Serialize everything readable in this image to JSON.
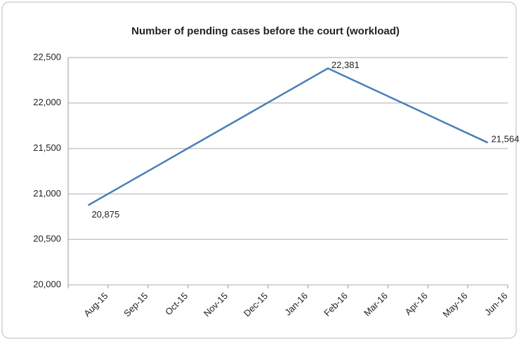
{
  "chart_data": {
    "type": "line",
    "title": "Number of pending cases before the court (workload)",
    "categories": [
      "Aug-15",
      "Sep-15",
      "Oct-15",
      "Nov-15",
      "Dec-15",
      "Jan-16",
      "Feb-16",
      "Mar-16",
      "Apr-16",
      "May-16",
      "Jun-16"
    ],
    "values": [
      20875,
      21126,
      21377,
      21628,
      21879,
      22130,
      22381,
      22177,
      21973,
      21768,
      21564
    ],
    "value_labels": [
      "20,875",
      null,
      null,
      null,
      null,
      null,
      "22,381",
      null,
      null,
      null,
      "21,564"
    ],
    "color": "#4a7ebb",
    "ylim": [
      20000,
      22500
    ],
    "yticks": [
      {
        "value": 20000,
        "label": "20,000"
      },
      {
        "value": 20500,
        "label": "20,500"
      },
      {
        "value": 21000,
        "label": "21,000"
      },
      {
        "value": 21500,
        "label": "21,500"
      },
      {
        "value": 22000,
        "label": "22,000"
      },
      {
        "value": 22500,
        "label": "22,500"
      }
    ],
    "grid": true
  }
}
